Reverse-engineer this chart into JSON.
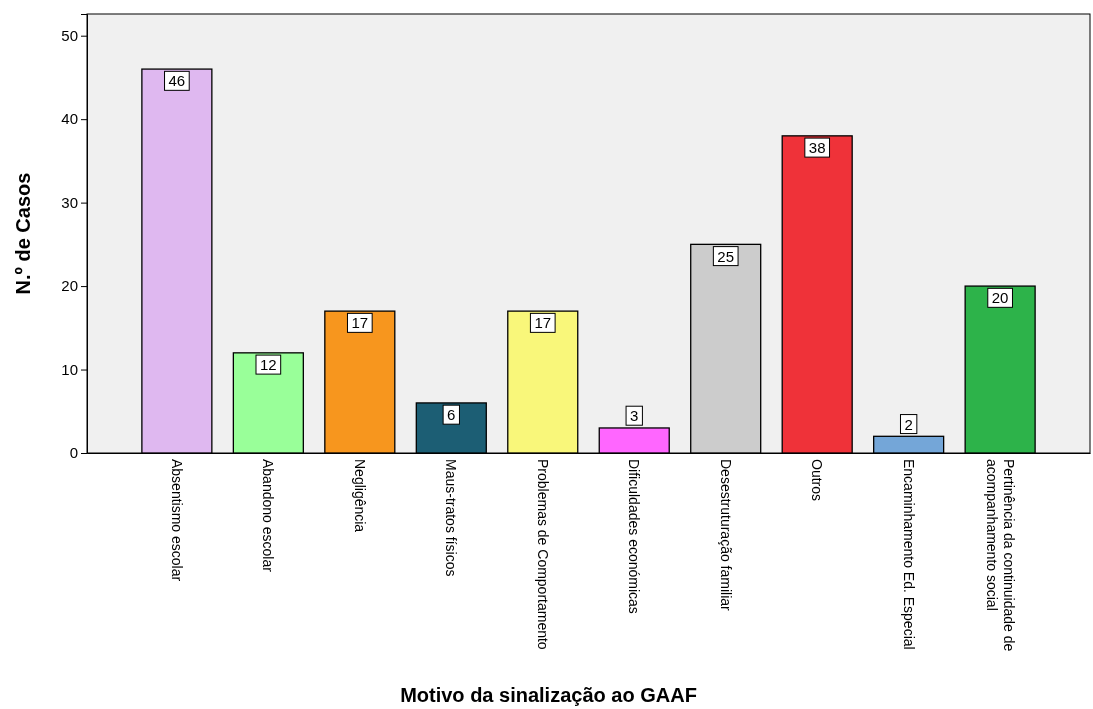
{
  "chart_data": {
    "type": "bar",
    "xlabel": "Motivo da sinalização ao GAAF",
    "ylabel": "N.º de Casos",
    "categories": [
      "Absentismo escolar",
      "Abandono escolar",
      "Negligência",
      "Maus-tratos físicos",
      "Problemas de Comportamento",
      "Dificuldades económicas",
      "Desestruturação familiar",
      "Outros",
      "Encaminhamento Ed. Especial",
      "Pertinência da continuidade de acompanhamento social"
    ],
    "values": [
      46,
      12,
      17,
      6,
      17,
      3,
      25,
      38,
      2,
      20
    ],
    "colors": [
      "#dfb8f0",
      "#99ff99",
      "#f7961e",
      "#1c5e74",
      "#f9f77a",
      "#ff66ff",
      "#cccccc",
      "#ef3239",
      "#74a6d8",
      "#2db34a"
    ],
    "ylim": [
      0,
      52.6
    ],
    "yticks": [
      0,
      10,
      20,
      30,
      40,
      50
    ],
    "grid": false,
    "data_labels": true
  }
}
